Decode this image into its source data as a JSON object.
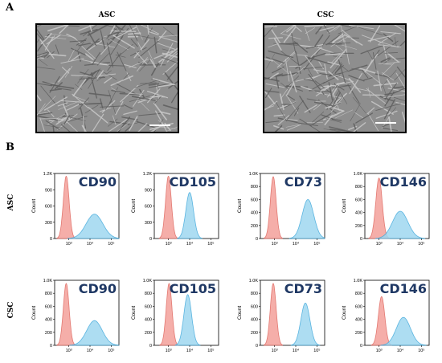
{
  "panel_a": {
    "letter": "A",
    "images": [
      {
        "label": "ASC"
      },
      {
        "label": "CSC"
      }
    ]
  },
  "panel_b": {
    "letter": "B",
    "row_labels": [
      "ASC",
      "CSC"
    ]
  },
  "colors": {
    "control_fill": "#f4a6a0",
    "control_stroke": "#e06b63",
    "marker_fill": "#9fd8f0",
    "marker_stroke": "#3ea8db",
    "label_color": "#1f3864"
  },
  "chart_data": [
    {
      "type": "area",
      "row": "ASC",
      "marker": "CD90",
      "ylabel": "Count",
      "yticks": [
        "0",
        "300",
        "600",
        "900",
        "1.2K"
      ],
      "ymax": 1200,
      "xticks": [
        "10³",
        "10⁴",
        "10⁵"
      ],
      "control": {
        "center": 0.18,
        "width": 0.045,
        "peak": 1150
      },
      "stained": {
        "center": 0.62,
        "width": 0.13,
        "peak": 450
      }
    },
    {
      "type": "area",
      "row": "ASC",
      "marker": "CD105",
      "ylabel": "Count",
      "yticks": [
        "0",
        "300",
        "600",
        "900",
        "1.2K"
      ],
      "ymax": 1200,
      "xticks": [
        "10³",
        "10⁴",
        "10⁵"
      ],
      "control": {
        "center": 0.22,
        "width": 0.045,
        "peak": 1150
      },
      "stained": {
        "center": 0.55,
        "width": 0.06,
        "peak": 850
      }
    },
    {
      "type": "area",
      "row": "ASC",
      "marker": "CD73",
      "ylabel": "Count",
      "yticks": [
        "0",
        "200",
        "400",
        "600",
        "800",
        "1.0K"
      ],
      "ymax": 1000,
      "xticks": [
        "10³",
        "10⁴",
        "10⁵"
      ],
      "control": {
        "center": 0.2,
        "width": 0.045,
        "peak": 950
      },
      "stained": {
        "center": 0.74,
        "width": 0.09,
        "peak": 600
      }
    },
    {
      "type": "area",
      "row": "ASC",
      "marker": "CD146",
      "ylabel": "Count",
      "yticks": [
        "0",
        "200",
        "400",
        "600",
        "800",
        "1.0K"
      ],
      "ymax": 1000,
      "xticks": [
        "10³",
        "10⁴",
        "10⁵"
      ],
      "control": {
        "center": 0.22,
        "width": 0.05,
        "peak": 930
      },
      "stained": {
        "center": 0.55,
        "width": 0.12,
        "peak": 420
      }
    },
    {
      "type": "area",
      "row": "CSC",
      "marker": "CD90",
      "ylabel": "Count",
      "yticks": [
        "0",
        "200",
        "400",
        "600",
        "800",
        "1.0K"
      ],
      "ymax": 1000,
      "xticks": [
        "10³",
        "10⁴",
        "10⁵"
      ],
      "control": {
        "center": 0.18,
        "width": 0.045,
        "peak": 950
      },
      "stained": {
        "center": 0.62,
        "width": 0.12,
        "peak": 380
      }
    },
    {
      "type": "area",
      "row": "CSC",
      "marker": "CD105",
      "ylabel": "Count",
      "yticks": [
        "0",
        "200",
        "400",
        "600",
        "800",
        "1.0K"
      ],
      "ymax": 1000,
      "xticks": [
        "10³",
        "10⁴",
        "10⁵"
      ],
      "control": {
        "center": 0.23,
        "width": 0.045,
        "peak": 950
      },
      "stained": {
        "center": 0.52,
        "width": 0.06,
        "peak": 780
      }
    },
    {
      "type": "area",
      "row": "CSC",
      "marker": "CD73",
      "ylabel": "Count",
      "yticks": [
        "0",
        "200",
        "400",
        "600",
        "800",
        "1.0K"
      ],
      "ymax": 1000,
      "xticks": [
        "10³",
        "10⁴",
        "10⁵"
      ],
      "control": {
        "center": 0.2,
        "width": 0.045,
        "peak": 950
      },
      "stained": {
        "center": 0.7,
        "width": 0.07,
        "peak": 650
      }
    },
    {
      "type": "area",
      "row": "CSC",
      "marker": "CD146",
      "ylabel": "Count",
      "yticks": [
        "0",
        "200",
        "400",
        "600",
        "800",
        "1.0K"
      ],
      "ymax": 1000,
      "xticks": [
        "10³",
        "10⁴",
        "10⁵"
      ],
      "control": {
        "center": 0.26,
        "width": 0.05,
        "peak": 750
      },
      "stained": {
        "center": 0.6,
        "width": 0.11,
        "peak": 430
      }
    }
  ]
}
